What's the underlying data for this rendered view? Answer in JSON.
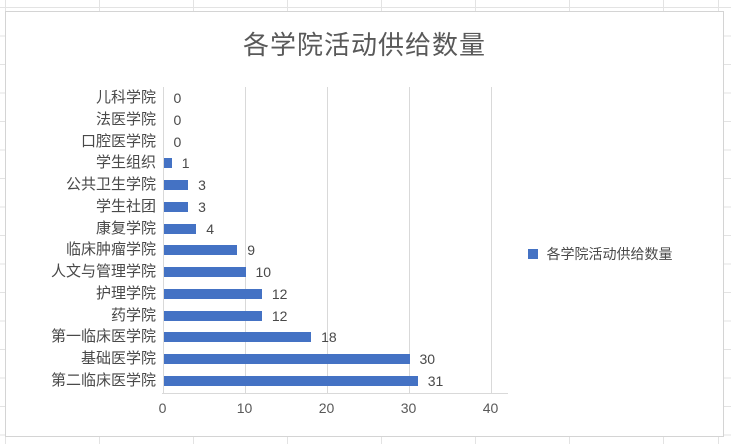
{
  "chart_data": {
    "type": "bar",
    "orientation": "horizontal",
    "title": "各学院活动供给数量",
    "categories": [
      "儿科学院",
      "法医学院",
      "口腔医学院",
      "学生组织",
      "公共卫生学院",
      "学生社团",
      "康复学院",
      "临床肿瘤学院",
      "人文与管理学院",
      "护理学院",
      "药学院",
      "第一临床医学院",
      "基础医学院",
      "第二临床医学院"
    ],
    "series": [
      {
        "name": "各学院活动供给数量",
        "values": [
          0,
          0,
          0,
          1,
          3,
          3,
          4,
          9,
          10,
          12,
          12,
          18,
          30,
          31
        ]
      }
    ],
    "x_ticks": [
      0,
      10,
      20,
      30,
      40
    ],
    "xlim": [
      0,
      42
    ],
    "grid": true,
    "data_labels": true,
    "legend_position": "right",
    "bar_color": "#4472C4",
    "gridline_color": "#d9d9d9",
    "title_color": "#595959",
    "label_color": "#494949"
  }
}
